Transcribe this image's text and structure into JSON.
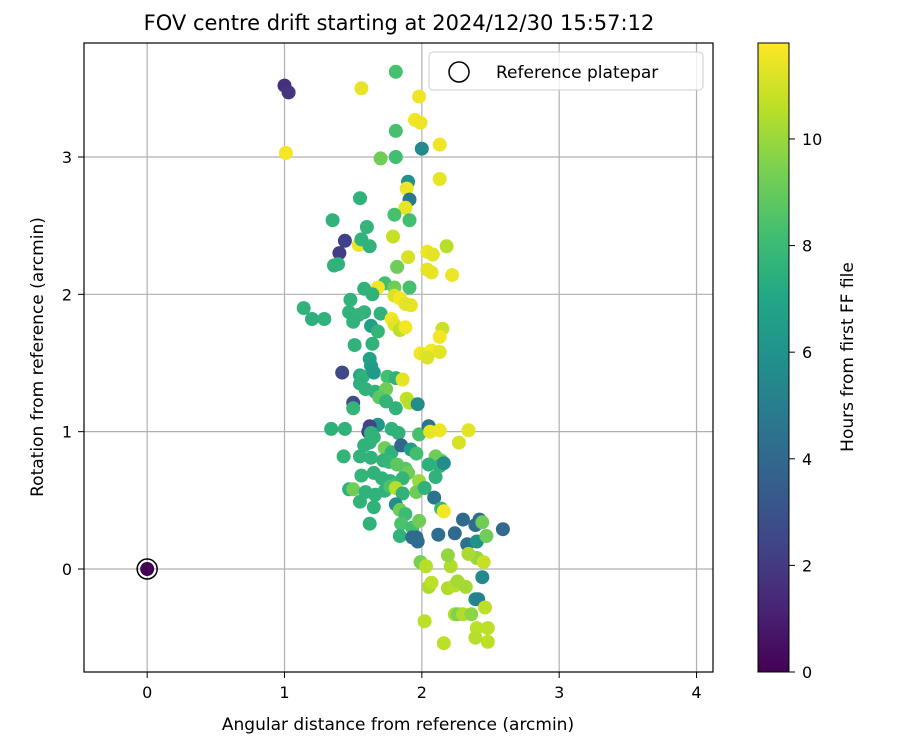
{
  "chart_data": {
    "type": "scatter",
    "title": "FOV centre drift starting at 2024/12/30 15:57:12",
    "xlabel": "Angular distance from reference (arcmin)",
    "ylabel": "Rotation from reference (arcmin)",
    "xlim": [
      -0.46,
      4.12
    ],
    "ylim": [
      -0.75,
      3.83
    ],
    "xticks": [
      "0",
      "1",
      "2",
      "3",
      "4"
    ],
    "yticks": [
      "0",
      "1",
      "2",
      "3"
    ],
    "grid": true,
    "legend": {
      "placement": "top-right",
      "label": "Reference platepar"
    },
    "colorbar": {
      "label": "Hours from first FF file",
      "range": [
        0,
        11.8
      ],
      "ticks": [
        "0",
        "2",
        "4",
        "6",
        "8",
        "10"
      ],
      "colormap": "viridis"
    },
    "reference_point": {
      "x": 0,
      "y": 0,
      "t": 0
    },
    "points": [
      [
        1.0,
        3.52,
        1.6
      ],
      [
        1.03,
        3.47,
        1.8
      ],
      [
        1.01,
        3.03,
        11.6
      ],
      [
        1.56,
        3.5,
        11.4
      ],
      [
        1.81,
        3.62,
        8.3
      ],
      [
        1.98,
        3.44,
        11.5
      ],
      [
        1.95,
        3.27,
        11.6
      ],
      [
        1.99,
        3.25,
        11.5
      ],
      [
        1.81,
        3.19,
        8.3
      ],
      [
        2.0,
        3.06,
        5.5
      ],
      [
        2.13,
        3.09,
        11.5
      ],
      [
        1.7,
        2.99,
        9.2
      ],
      [
        1.81,
        3.0,
        8.2
      ],
      [
        1.9,
        2.82,
        6.0
      ],
      [
        1.89,
        2.77,
        11.5
      ],
      [
        2.13,
        2.84,
        11.4
      ],
      [
        1.55,
        2.7,
        7.6
      ],
      [
        1.91,
        2.69,
        4.7
      ],
      [
        1.88,
        2.63,
        11.4
      ],
      [
        1.8,
        2.58,
        8.3
      ],
      [
        1.91,
        2.54,
        8.2
      ],
      [
        1.35,
        2.54,
        7.6
      ],
      [
        1.6,
        2.49,
        7.7
      ],
      [
        1.44,
        2.39,
        2.3
      ],
      [
        1.54,
        2.36,
        11.5
      ],
      [
        1.56,
        2.4,
        7.6
      ],
      [
        1.62,
        2.35,
        7.6
      ],
      [
        1.79,
        2.42,
        10.8
      ],
      [
        1.4,
        2.3,
        2.1
      ],
      [
        1.36,
        2.21,
        7.6
      ],
      [
        1.39,
        2.22,
        7.6
      ],
      [
        2.04,
        2.31,
        11.5
      ],
      [
        2.08,
        2.29,
        11.3
      ],
      [
        2.18,
        2.35,
        10.5
      ],
      [
        1.9,
        2.27,
        11.1
      ],
      [
        1.82,
        2.2,
        9.2
      ],
      [
        2.04,
        2.18,
        11.4
      ],
      [
        2.07,
        2.16,
        11.4
      ],
      [
        2.22,
        2.14,
        11.5
      ],
      [
        1.73,
        2.08,
        8.2
      ],
      [
        1.8,
        2.05,
        9.2
      ],
      [
        1.58,
        2.04,
        7.6
      ],
      [
        1.68,
        2.05,
        11.6
      ],
      [
        1.91,
        2.05,
        8.3
      ],
      [
        1.64,
        2.0,
        7.6
      ],
      [
        1.48,
        1.96,
        7.6
      ],
      [
        1.8,
        1.99,
        11.2
      ],
      [
        1.84,
        1.97,
        11.6
      ],
      [
        1.92,
        1.92,
        11.4
      ],
      [
        1.14,
        1.9,
        7.6
      ],
      [
        1.88,
        1.93,
        11.3
      ],
      [
        1.58,
        1.87,
        7.6
      ],
      [
        1.47,
        1.87,
        7.6
      ],
      [
        1.54,
        1.85,
        7.7
      ],
      [
        1.7,
        1.86,
        7.6
      ],
      [
        1.2,
        1.82,
        7.5
      ],
      [
        1.29,
        1.82,
        7.6
      ],
      [
        1.5,
        1.8,
        7.6
      ],
      [
        1.63,
        1.77,
        6.6
      ],
      [
        1.78,
        1.82,
        11.6
      ],
      [
        1.8,
        1.78,
        11.3
      ],
      [
        1.84,
        1.74,
        10.6
      ],
      [
        1.88,
        1.76,
        11.6
      ],
      [
        1.68,
        1.73,
        7.7
      ],
      [
        2.15,
        1.75,
        10.9
      ],
      [
        2.13,
        1.69,
        11.6
      ],
      [
        1.51,
        1.63,
        7.6
      ],
      [
        1.64,
        1.64,
        7.6
      ],
      [
        1.99,
        1.57,
        11.6
      ],
      [
        2.02,
        1.56,
        11.4
      ],
      [
        2.07,
        1.59,
        11.6
      ],
      [
        2.04,
        1.54,
        11.2
      ],
      [
        2.13,
        1.58,
        11.3
      ],
      [
        1.62,
        1.53,
        6.7
      ],
      [
        1.63,
        1.48,
        6.5
      ],
      [
        1.42,
        1.43,
        2.6
      ],
      [
        1.55,
        1.41,
        7.0
      ],
      [
        1.57,
        1.4,
        7.6
      ],
      [
        1.65,
        1.43,
        6.4
      ],
      [
        1.75,
        1.4,
        8.2
      ],
      [
        1.81,
        1.39,
        7.6
      ],
      [
        1.86,
        1.38,
        11.3
      ],
      [
        1.55,
        1.35,
        7.5
      ],
      [
        1.59,
        1.31,
        7.6
      ],
      [
        1.66,
        1.29,
        7.6
      ],
      [
        1.71,
        1.28,
        7.6
      ],
      [
        1.74,
        1.31,
        9.2
      ],
      [
        1.69,
        1.25,
        8.8
      ],
      [
        1.74,
        1.22,
        7.7
      ],
      [
        1.89,
        1.24,
        10.7
      ],
      [
        1.91,
        1.21,
        10.5
      ],
      [
        1.97,
        1.2,
        5.7
      ],
      [
        1.5,
        1.21,
        2.7
      ],
      [
        1.5,
        1.17,
        7.7
      ],
      [
        1.81,
        1.17,
        7.6
      ],
      [
        1.68,
        1.05,
        6.2
      ],
      [
        1.34,
        1.02,
        7.5
      ],
      [
        1.44,
        1.02,
        7.6
      ],
      [
        1.61,
        1.0,
        2.5
      ],
      [
        1.62,
        1.04,
        2.4
      ],
      [
        1.63,
        0.99,
        7.6
      ],
      [
        1.65,
        0.96,
        7.6
      ],
      [
        1.78,
        1.02,
        7.6
      ],
      [
        1.83,
        0.99,
        7.6
      ],
      [
        1.98,
        0.98,
        8.3
      ],
      [
        2.05,
        1.04,
        4.5
      ],
      [
        2.06,
        1.0,
        11.4
      ],
      [
        2.13,
        1.01,
        11.5
      ],
      [
        2.27,
        0.92,
        11.1
      ],
      [
        2.34,
        1.01,
        11.3
      ],
      [
        1.58,
        0.9,
        7.6
      ],
      [
        1.62,
        0.92,
        7.6
      ],
      [
        1.73,
        0.88,
        9.2
      ],
      [
        1.78,
        0.85,
        7.6
      ],
      [
        1.85,
        0.9,
        3.8
      ],
      [
        1.92,
        0.87,
        6.5
      ],
      [
        1.96,
        0.84,
        8.2
      ],
      [
        2.1,
        0.82,
        9.2
      ],
      [
        2.14,
        0.79,
        9.2
      ],
      [
        1.43,
        0.82,
        7.7
      ],
      [
        1.55,
        0.82,
        7.6
      ],
      [
        1.63,
        0.81,
        7.6
      ],
      [
        1.72,
        0.79,
        7.6
      ],
      [
        1.76,
        0.78,
        7.8
      ],
      [
        1.82,
        0.76,
        8.8
      ],
      [
        1.88,
        0.73,
        8.7
      ],
      [
        1.9,
        0.7,
        9.2
      ],
      [
        2.05,
        0.76,
        7.5
      ],
      [
        2.13,
        0.75,
        7.6
      ],
      [
        2.16,
        0.77,
        5.7
      ],
      [
        1.56,
        0.68,
        7.7
      ],
      [
        1.65,
        0.7,
        7.6
      ],
      [
        1.71,
        0.66,
        7.6
      ],
      [
        1.77,
        0.64,
        7.6
      ],
      [
        1.8,
        0.61,
        8.3
      ],
      [
        1.86,
        0.66,
        7.7
      ],
      [
        1.98,
        0.64,
        10.0
      ],
      [
        2.1,
        0.67,
        7.6
      ],
      [
        1.47,
        0.58,
        7.5
      ],
      [
        1.5,
        0.58,
        9.2
      ],
      [
        1.59,
        0.56,
        7.6
      ],
      [
        1.66,
        0.54,
        7.6
      ],
      [
        1.73,
        0.57,
        7.6
      ],
      [
        1.77,
        0.6,
        8.4
      ],
      [
        1.81,
        0.59,
        10.5
      ],
      [
        1.86,
        0.55,
        7.6
      ],
      [
        1.96,
        0.56,
        9.2
      ],
      [
        2.02,
        0.59,
        7.6
      ],
      [
        2.09,
        0.52,
        4.5
      ],
      [
        1.55,
        0.49,
        7.6
      ],
      [
        1.65,
        0.45,
        7.6
      ],
      [
        1.81,
        0.47,
        5.7
      ],
      [
        1.84,
        0.43,
        9.2
      ],
      [
        1.88,
        0.4,
        8.0
      ],
      [
        2.14,
        0.44,
        7.8
      ],
      [
        2.16,
        0.42,
        11.6
      ],
      [
        1.62,
        0.33,
        7.6
      ],
      [
        1.85,
        0.33,
        8.4
      ],
      [
        1.93,
        0.3,
        8.2
      ],
      [
        1.98,
        0.35,
        9.2
      ],
      [
        2.3,
        0.36,
        4.1
      ],
      [
        2.39,
        0.32,
        4.3
      ],
      [
        2.42,
        0.36,
        4.1
      ],
      [
        2.44,
        0.34,
        9.2
      ],
      [
        2.59,
        0.29,
        4.1
      ],
      [
        1.84,
        0.24,
        7.6
      ],
      [
        1.93,
        0.23,
        4.2
      ],
      [
        1.96,
        0.23,
        4.1
      ],
      [
        1.97,
        0.2,
        4.2
      ],
      [
        2.12,
        0.25,
        4.2
      ],
      [
        2.24,
        0.26,
        4.1
      ],
      [
        2.33,
        0.18,
        4.4
      ],
      [
        2.4,
        0.2,
        5.9
      ],
      [
        2.47,
        0.24,
        9.2
      ],
      [
        1.99,
        0.05,
        9.4
      ],
      [
        2.03,
        0.02,
        10.5
      ],
      [
        2.21,
        0.02,
        10.4
      ],
      [
        2.4,
        0.08,
        9.9
      ],
      [
        2.45,
        0.05,
        10.8
      ],
      [
        2.34,
        0.11,
        10.3
      ],
      [
        2.19,
        0.1,
        9.9
      ],
      [
        2.44,
        -0.06,
        5.5
      ],
      [
        2.05,
        -0.13,
        10.3
      ],
      [
        2.07,
        -0.1,
        10.6
      ],
      [
        2.19,
        -0.14,
        10.4
      ],
      [
        2.24,
        -0.12,
        10.5
      ],
      [
        2.26,
        -0.09,
        10.2
      ],
      [
        2.32,
        -0.13,
        10.2
      ],
      [
        2.39,
        -0.22,
        5.6
      ],
      [
        2.41,
        -0.22,
        5.1
      ],
      [
        2.46,
        -0.28,
        10.6
      ],
      [
        2.24,
        -0.33,
        10.4
      ],
      [
        2.26,
        -0.33,
        9.5
      ],
      [
        2.3,
        -0.33,
        10.4
      ],
      [
        2.36,
        -0.33,
        9.8
      ],
      [
        2.02,
        -0.38,
        10.6
      ],
      [
        2.4,
        -0.43,
        10.6
      ],
      [
        2.48,
        -0.43,
        10.6
      ],
      [
        2.39,
        -0.5,
        10.5
      ],
      [
        2.48,
        -0.53,
        10.6
      ],
      [
        2.16,
        -0.54,
        10.6
      ]
    ]
  }
}
